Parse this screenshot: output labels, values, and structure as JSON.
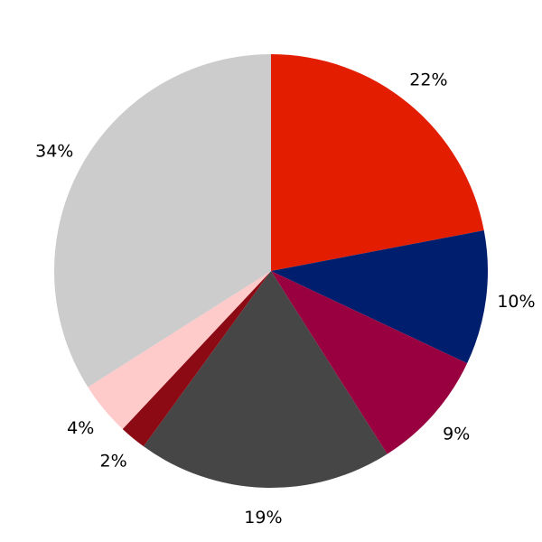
{
  "chart_data": {
    "type": "pie",
    "values": [
      22,
      10,
      9,
      19,
      2,
      4,
      34
    ],
    "value_labels": [
      "22%",
      "10%",
      "9%",
      "19%",
      "2%",
      "4%",
      "34%"
    ],
    "colors": [
      "#e31e00",
      "#001e6e",
      "#990040",
      "#464646",
      "#8c0a14",
      "#ffcaca",
      "#cccccc"
    ]
  }
}
